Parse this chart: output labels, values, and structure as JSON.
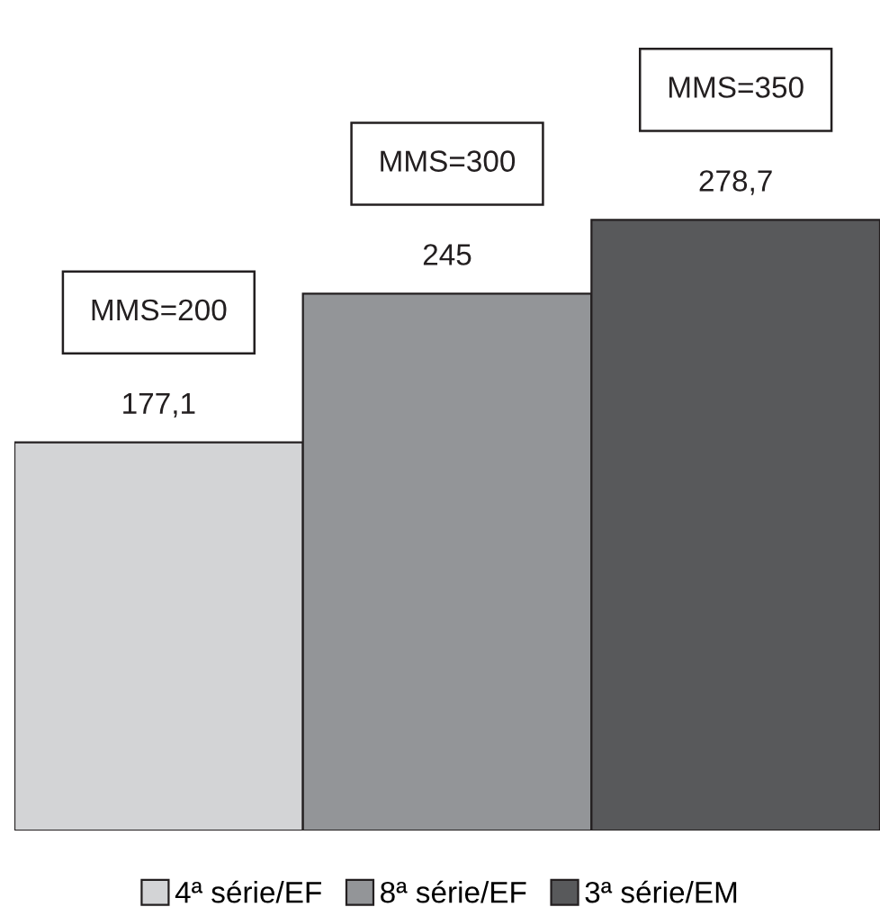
{
  "chart_data": {
    "type": "bar",
    "categories": [
      null
    ],
    "series": [
      {
        "name": "4ª série/EF",
        "color": "#d3d4d6",
        "values": [
          177.1
        ],
        "value_labels": [
          "177,1"
        ]
      },
      {
        "name": "8ª série/EF",
        "color": "#939598",
        "values": [
          245
        ],
        "value_labels": [
          "245"
        ]
      },
      {
        "name": "3ª série/EM",
        "color": "#58595b",
        "values": [
          278.7
        ],
        "value_labels": [
          "278,7"
        ]
      }
    ],
    "annotations": [
      "MMS=200",
      "MMS=300",
      "MMS=350"
    ],
    "legend": "bottom"
  }
}
